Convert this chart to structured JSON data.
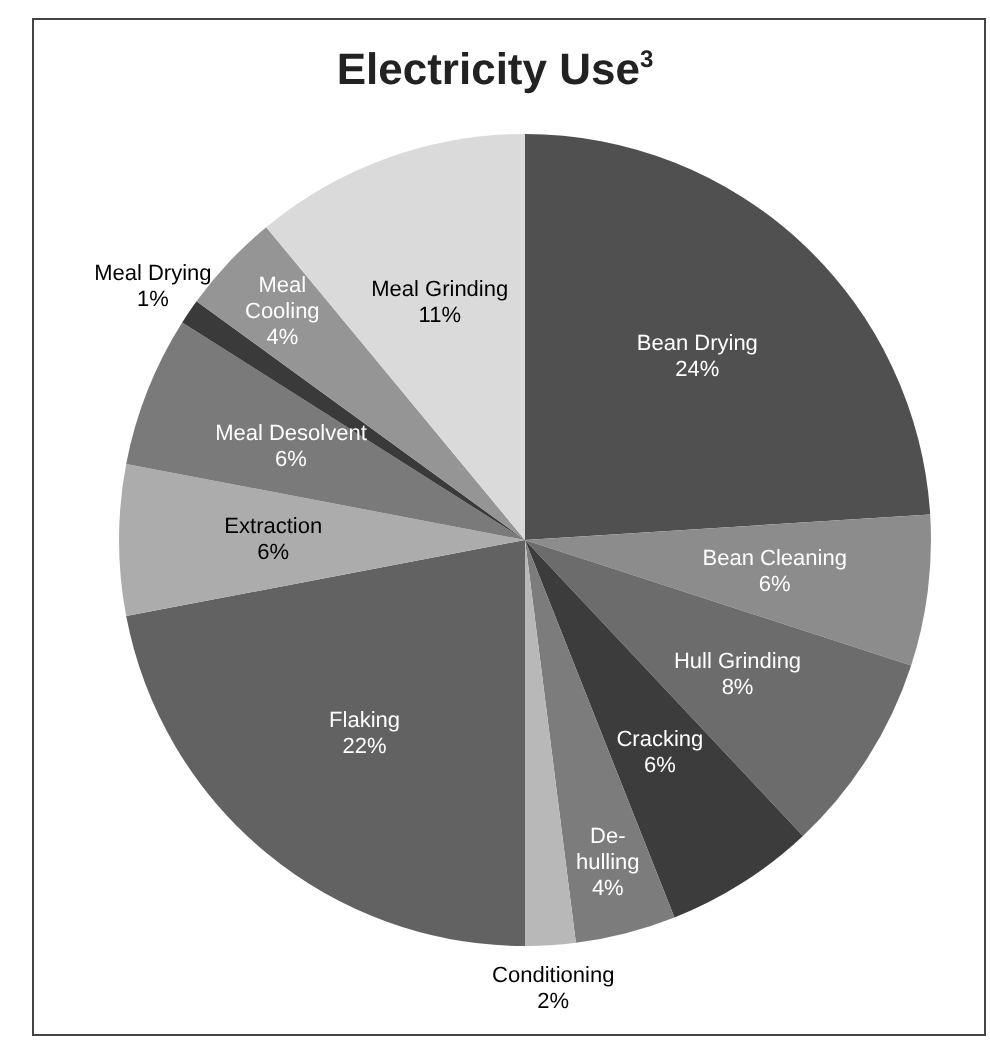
{
  "chart_data": {
    "type": "pie",
    "title": "Electricity Use$^{3}$",
    "categories": [
      "Bean Drying",
      "Bean Cleaning",
      "Hull Grinding",
      "Cracking",
      "De-hulling",
      "Conditioning",
      "Flaking",
      "Extraction",
      "Meal Desolvent",
      "Meal Drying",
      "Meal Cooling",
      "Meal Grinding"
    ],
    "values": [
      24,
      6,
      8,
      6,
      4,
      2,
      22,
      6,
      6,
      1,
      4,
      11
    ],
    "value_labels": [
      "24%",
      "6%",
      "8%",
      "6%",
      "4%",
      "2%",
      "22%",
      "6%",
      "6%",
      "1%",
      "4%",
      "11%"
    ],
    "colors": [
      "#505050",
      "#8c8c8c",
      "#6c6c6c",
      "#3c3c3c",
      "#7c7c7c",
      "#b8b8b8",
      "#626262",
      "#acacac",
      "#7a7a7a",
      "#3a3a3a",
      "#959595",
      "#dadada"
    ],
    "legend": false
  }
}
